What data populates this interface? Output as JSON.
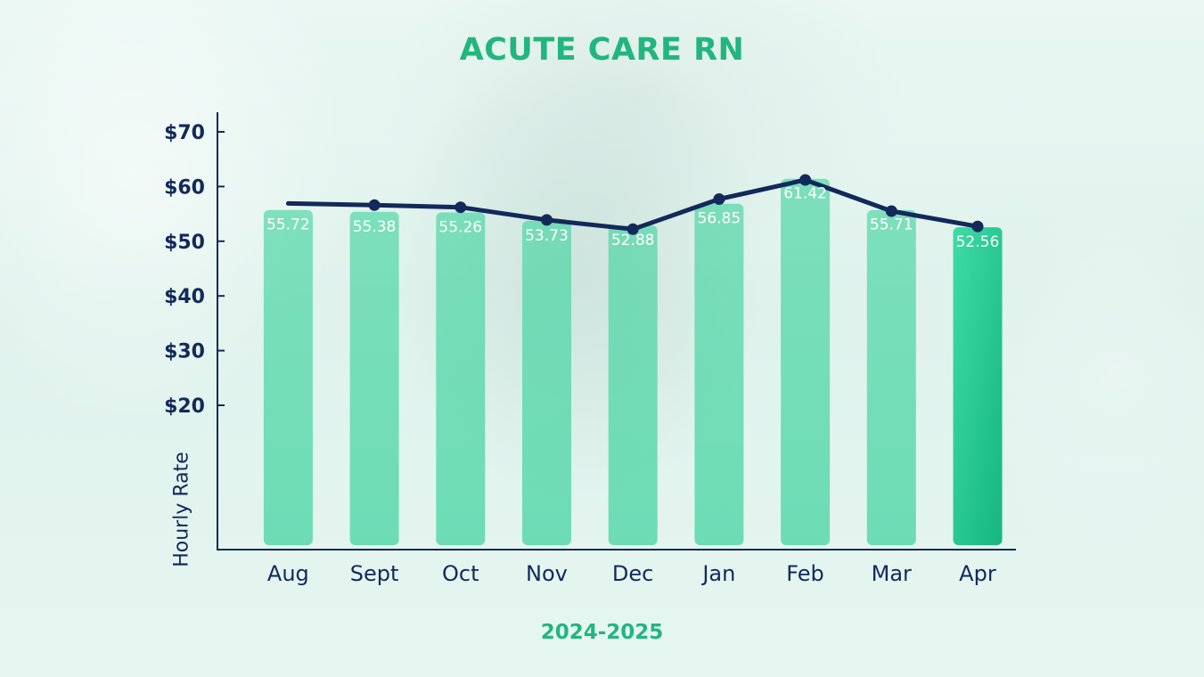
{
  "chart_data": {
    "type": "bar",
    "title": "ACUTE CARE RN",
    "xlabel": "2024-2025",
    "ylabel": "Hourly Rate",
    "categories": [
      "Aug",
      "Sept",
      "Oct",
      "Nov",
      "Dec",
      "Jan",
      "Feb",
      "Mar",
      "Apr"
    ],
    "series": [
      {
        "type": "bar",
        "values": [
          55.72,
          55.38,
          55.26,
          53.73,
          52.88,
          56.85,
          61.42,
          55.71,
          52.56
        ],
        "data_labels": [
          "55.72",
          "55.38",
          "55.26",
          "53.73",
          "52.88",
          "56.85",
          "61.42",
          "55.71",
          "52.56"
        ]
      },
      {
        "type": "line",
        "values": [
          56.9,
          56.6,
          56.2,
          53.9,
          52.2,
          57.7,
          61.2,
          55.5,
          52.7
        ]
      }
    ],
    "yticks": [
      {
        "value": 70,
        "label": "$70"
      },
      {
        "value": 60,
        "label": "$60"
      },
      {
        "value": 50,
        "label": "$50"
      },
      {
        "value": 40,
        "label": "$40"
      },
      {
        "value": 30,
        "label": "$30"
      },
      {
        "value": 20,
        "label": "$20"
      }
    ],
    "ylim": [
      0,
      73
    ],
    "grid": false,
    "legend": "none",
    "colors": {
      "bar": "#3fd39e",
      "bar_highlight": "#1db888",
      "line": "#12295a",
      "axis": "#12295a",
      "title": "#22b67f",
      "data_label": "#ffffff"
    }
  }
}
